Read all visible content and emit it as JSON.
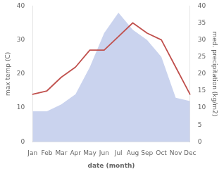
{
  "chart_data": {
    "type": "line",
    "xlabel": "date (month)",
    "ylabel": "max temp (C)",
    "y2label": "med. precipitation (kg/m2)",
    "categories": [
      "Jan",
      "Feb",
      "Mar",
      "Apr",
      "May",
      "Jun",
      "Jul",
      "Aug",
      "Sep",
      "Oct",
      "Nov",
      "Dec"
    ],
    "series": [
      {
        "type": "line",
        "color": "#c0504d",
        "values": [
          14,
          15,
          19,
          22,
          27,
          27,
          31,
          35,
          32,
          30,
          22,
          14
        ]
      },
      {
        "type": "area",
        "color": "#b8c4e8",
        "axis": "y2",
        "values": [
          9,
          9,
          11,
          14,
          22,
          32,
          38,
          33,
          30,
          25,
          13,
          12
        ]
      }
    ],
    "ylim": [
      0,
      40
    ],
    "yticks": [
      0,
      10,
      20,
      30,
      40
    ],
    "y2lim": [
      0,
      40
    ],
    "y2ticks": [
      0,
      5,
      10,
      15,
      20,
      25,
      30,
      35,
      40
    ],
    "grid": false
  }
}
